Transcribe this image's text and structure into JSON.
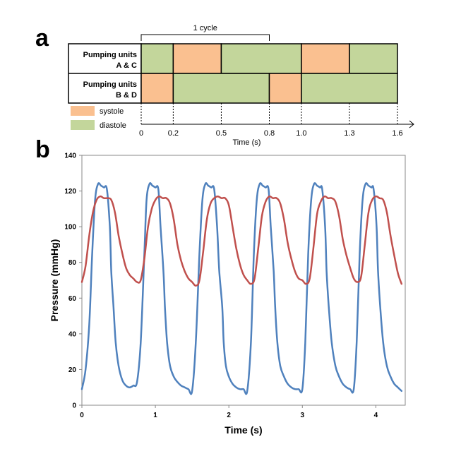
{
  "panels": {
    "a": "a",
    "b": "b"
  },
  "colors": {
    "systole": "#fac090",
    "diastole": "#c3d69b",
    "series1": "#4f81bd",
    "series2": "#c0504d"
  },
  "chart_data": [
    {
      "type": "timeline",
      "cycle_label": "1 cycle",
      "cycle_span": [
        0,
        0.8
      ],
      "rows": [
        {
          "label_line1": "Pumping units",
          "label_line2": "A & C",
          "segments": [
            {
              "start": 0,
              "end": 0.2,
              "phase": "diastole"
            },
            {
              "start": 0.2,
              "end": 0.5,
              "phase": "systole"
            },
            {
              "start": 0.5,
              "end": 1.0,
              "phase": "diastole"
            },
            {
              "start": 1.0,
              "end": 1.3,
              "phase": "systole"
            },
            {
              "start": 1.3,
              "end": 1.6,
              "phase": "diastole"
            }
          ]
        },
        {
          "label_line1": "Pumping units",
          "label_line2": "B & D",
          "segments": [
            {
              "start": 0,
              "end": 0.2,
              "phase": "systole"
            },
            {
              "start": 0.2,
              "end": 0.8,
              "phase": "diastole"
            },
            {
              "start": 0.8,
              "end": 1.0,
              "phase": "systole"
            },
            {
              "start": 1.0,
              "end": 1.6,
              "phase": "diastole"
            }
          ]
        }
      ],
      "legend": [
        {
          "label": "systole",
          "phase": "systole"
        },
        {
          "label": "diastole",
          "phase": "diastole"
        }
      ],
      "xticks": [
        {
          "value": 0,
          "label": "0"
        },
        {
          "value": 0.2,
          "label": "0.2"
        },
        {
          "value": 0.5,
          "label": "0.5"
        },
        {
          "value": 0.8,
          "label": "0.8"
        },
        {
          "value": 1.0,
          "label": "1.0"
        },
        {
          "value": 1.3,
          "label": "1.3"
        },
        {
          "value": 1.6,
          "label": "1.6"
        }
      ],
      "xlabel": "Time (s)",
      "xlim": [
        0,
        1.6
      ]
    },
    {
      "type": "line",
      "xlabel": "Time (s)",
      "ylabel": "Pressure (mmHg)",
      "xlim": [
        0,
        4.4
      ],
      "ylim": [
        0,
        140
      ],
      "xticks": [
        0,
        1,
        2,
        3,
        4
      ],
      "yticks": [
        0,
        20,
        40,
        60,
        80,
        100,
        120,
        140
      ],
      "series": [
        {
          "color": "#4f81bd",
          "x": [
            0.0,
            0.05,
            0.1,
            0.14,
            0.18,
            0.22,
            0.26,
            0.3,
            0.34,
            0.38,
            0.4,
            0.43,
            0.46,
            0.5,
            0.55,
            0.6,
            0.65,
            0.7,
            0.75,
            0.8,
            0.85,
            0.88,
            0.92,
            0.96,
            1.0,
            1.04,
            1.07,
            1.11,
            1.13,
            1.16,
            1.2,
            1.25,
            1.3,
            1.35,
            1.4,
            1.45,
            1.5,
            1.55,
            1.6,
            1.64,
            1.68,
            1.72,
            1.76,
            1.8,
            1.84,
            1.87,
            1.91,
            1.93,
            1.96,
            2.0,
            2.05,
            2.1,
            2.15,
            2.2,
            2.25,
            2.3,
            2.34,
            2.38,
            2.42,
            2.46,
            2.5,
            2.54,
            2.57,
            2.61,
            2.63,
            2.66,
            2.7,
            2.75,
            2.8,
            2.85,
            2.9,
            2.95,
            3.0,
            3.04,
            3.08,
            3.12,
            3.16,
            3.2,
            3.24,
            3.27,
            3.31,
            3.33,
            3.36,
            3.4,
            3.45,
            3.5,
            3.55,
            3.6,
            3.65,
            3.7,
            3.74,
            3.78,
            3.82,
            3.86,
            3.9,
            3.94,
            3.97,
            4.01,
            4.03,
            4.06,
            4.1,
            4.15,
            4.2,
            4.25,
            4.3,
            4.35
          ],
          "y": [
            9,
            20,
            45,
            85,
            115,
            124,
            123,
            122,
            121,
            100,
            75,
            55,
            35,
            22,
            14,
            11,
            10,
            11,
            13,
            35,
            85,
            115,
            124,
            123,
            122,
            121,
            100,
            75,
            55,
            35,
            22,
            16,
            13,
            11,
            10,
            9,
            8,
            35,
            85,
            115,
            124,
            123,
            122,
            121,
            100,
            75,
            55,
            35,
            22,
            16,
            12,
            10,
            9,
            9,
            8,
            35,
            85,
            115,
            124,
            123,
            122,
            121,
            100,
            75,
            55,
            35,
            22,
            16,
            12,
            10,
            9,
            9,
            9,
            35,
            85,
            115,
            124,
            123,
            122,
            121,
            100,
            75,
            55,
            35,
            22,
            16,
            12,
            10,
            9,
            9,
            36,
            85,
            115,
            124,
            123,
            122,
            121,
            100,
            75,
            55,
            35,
            22,
            16,
            12,
            10,
            8
          ]
        },
        {
          "color": "#c0504d",
          "x": [
            0.0,
            0.05,
            0.1,
            0.15,
            0.2,
            0.25,
            0.3,
            0.35,
            0.4,
            0.45,
            0.5,
            0.55,
            0.6,
            0.65,
            0.7,
            0.75,
            0.8,
            0.85,
            0.9,
            0.95,
            1.0,
            1.05,
            1.1,
            1.15,
            1.2,
            1.25,
            1.3,
            1.35,
            1.4,
            1.45,
            1.5,
            1.55,
            1.6,
            1.65,
            1.7,
            1.75,
            1.8,
            1.85,
            1.9,
            1.95,
            2.0,
            2.05,
            2.1,
            2.15,
            2.2,
            2.25,
            2.3,
            2.35,
            2.4,
            2.45,
            2.5,
            2.55,
            2.6,
            2.65,
            2.7,
            2.75,
            2.8,
            2.85,
            2.9,
            2.95,
            3.0,
            3.05,
            3.1,
            3.15,
            3.2,
            3.25,
            3.3,
            3.35,
            3.4,
            3.45,
            3.5,
            3.55,
            3.6,
            3.65,
            3.7,
            3.75,
            3.8,
            3.85,
            3.9,
            3.95,
            4.0,
            4.05,
            4.1,
            4.15,
            4.2,
            4.25,
            4.3,
            4.35
          ],
          "y": [
            69,
            78,
            95,
            108,
            115,
            117,
            116,
            116,
            115,
            108,
            95,
            85,
            77,
            73,
            71,
            69,
            70,
            82,
            100,
            110,
            115,
            117,
            116,
            116,
            113,
            104,
            90,
            81,
            75,
            71,
            69,
            67,
            70,
            86,
            104,
            113,
            116,
            117,
            116,
            116,
            112,
            100,
            88,
            79,
            73,
            70,
            68,
            71,
            88,
            106,
            114,
            117,
            116,
            116,
            113,
            104,
            91,
            82,
            75,
            71,
            70,
            68,
            71,
            88,
            107,
            114,
            117,
            116,
            116,
            114,
            106,
            93,
            84,
            77,
            71,
            69,
            72,
            90,
            108,
            115,
            117,
            116,
            115,
            108,
            95,
            84,
            74,
            68
          ]
        }
      ]
    }
  ]
}
